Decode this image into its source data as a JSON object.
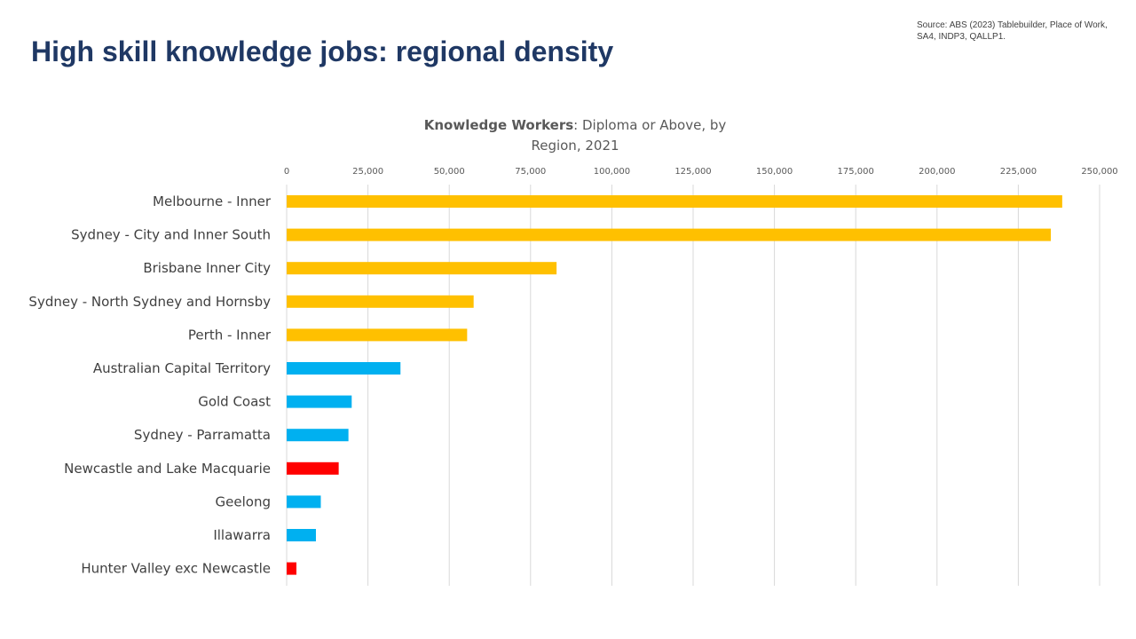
{
  "slide": {
    "title": "High skill knowledge jobs: regional density",
    "source": "Source: ABS (2023) Tablebuilder, Place of Work, SA4, INDP3,   QALLP1."
  },
  "chart_data": {
    "type": "bar",
    "orientation": "horizontal",
    "title_bold": "Knowledge Workers",
    "title_rest": ": Diploma or Above, by Region, 2021",
    "xlim": [
      0,
      250000
    ],
    "x_ticks": [
      0,
      25000,
      50000,
      75000,
      100000,
      125000,
      150000,
      175000,
      200000,
      225000,
      250000
    ],
    "x_tick_labels": [
      "0",
      "25,000",
      "50,000",
      "75,000",
      "100,000",
      "125,000",
      "150,000",
      "175,000",
      "200,000",
      "225,000",
      "250,000"
    ],
    "grid": true,
    "axis_position": "top",
    "colors": {
      "gold": "#ffc000",
      "blue": "#00b0f0",
      "red": "#ff0000",
      "grid": "#d9d9d9",
      "title": "#1f3864"
    },
    "categories": [
      "Melbourne - Inner",
      "Sydney - City and Inner South",
      "Brisbane Inner City",
      "Sydney - North Sydney and Hornsby",
      "Perth - Inner",
      "Australian Capital Territory",
      "Gold Coast",
      "Sydney - Parramatta",
      "Newcastle and Lake Macquarie",
      "Geelong",
      "Illawarra",
      "Hunter Valley exc Newcastle"
    ],
    "values": [
      238500,
      235000,
      83000,
      57500,
      55500,
      35000,
      20000,
      19000,
      16000,
      10500,
      9000,
      3000
    ],
    "bar_colors": [
      "gold",
      "gold",
      "gold",
      "gold",
      "gold",
      "blue",
      "blue",
      "blue",
      "red",
      "blue",
      "blue",
      "red"
    ]
  }
}
